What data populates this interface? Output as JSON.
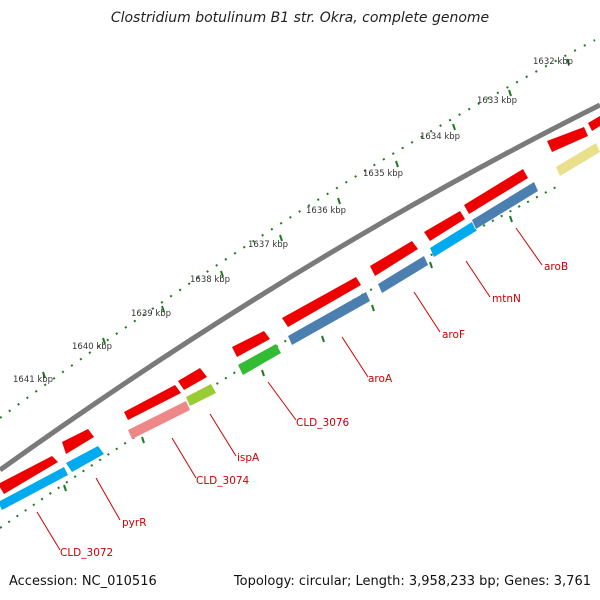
{
  "title": "Clostridium botulinum B1 str. Okra, complete genome",
  "footer": {
    "accession": "Accession: NC_010516",
    "stats": "Topology: circular; Length: 3,958,233 bp; Genes: 3,761"
  },
  "kbp_labels": [
    "1632 kbp",
    "1633 kbp",
    "1634 kbp",
    "1635 kbp",
    "1636 kbp",
    "1637 kbp",
    "1638 kbp",
    "1639 kbp",
    "1640 kbp",
    "1641 kbp"
  ],
  "gene_labels": [
    "aroB",
    "mtnN",
    "aroF",
    "aroA",
    "CLD_3076",
    "ispA",
    "CLD_3074",
    "pyrR",
    "CLD_3072"
  ],
  "colors": {
    "backbone": "#7a7a7a",
    "tick": "#1e7a1e",
    "gene_red": "#ee0000",
    "cds_steel": "#4a7fb0",
    "cds_cyan": "#00aaee",
    "cds_green": "#33bb33",
    "cds_pink": "#ee8888",
    "cds_lime": "#99cc33",
    "cds_khaki": "#e8e08a",
    "label": "#cc0000"
  }
}
